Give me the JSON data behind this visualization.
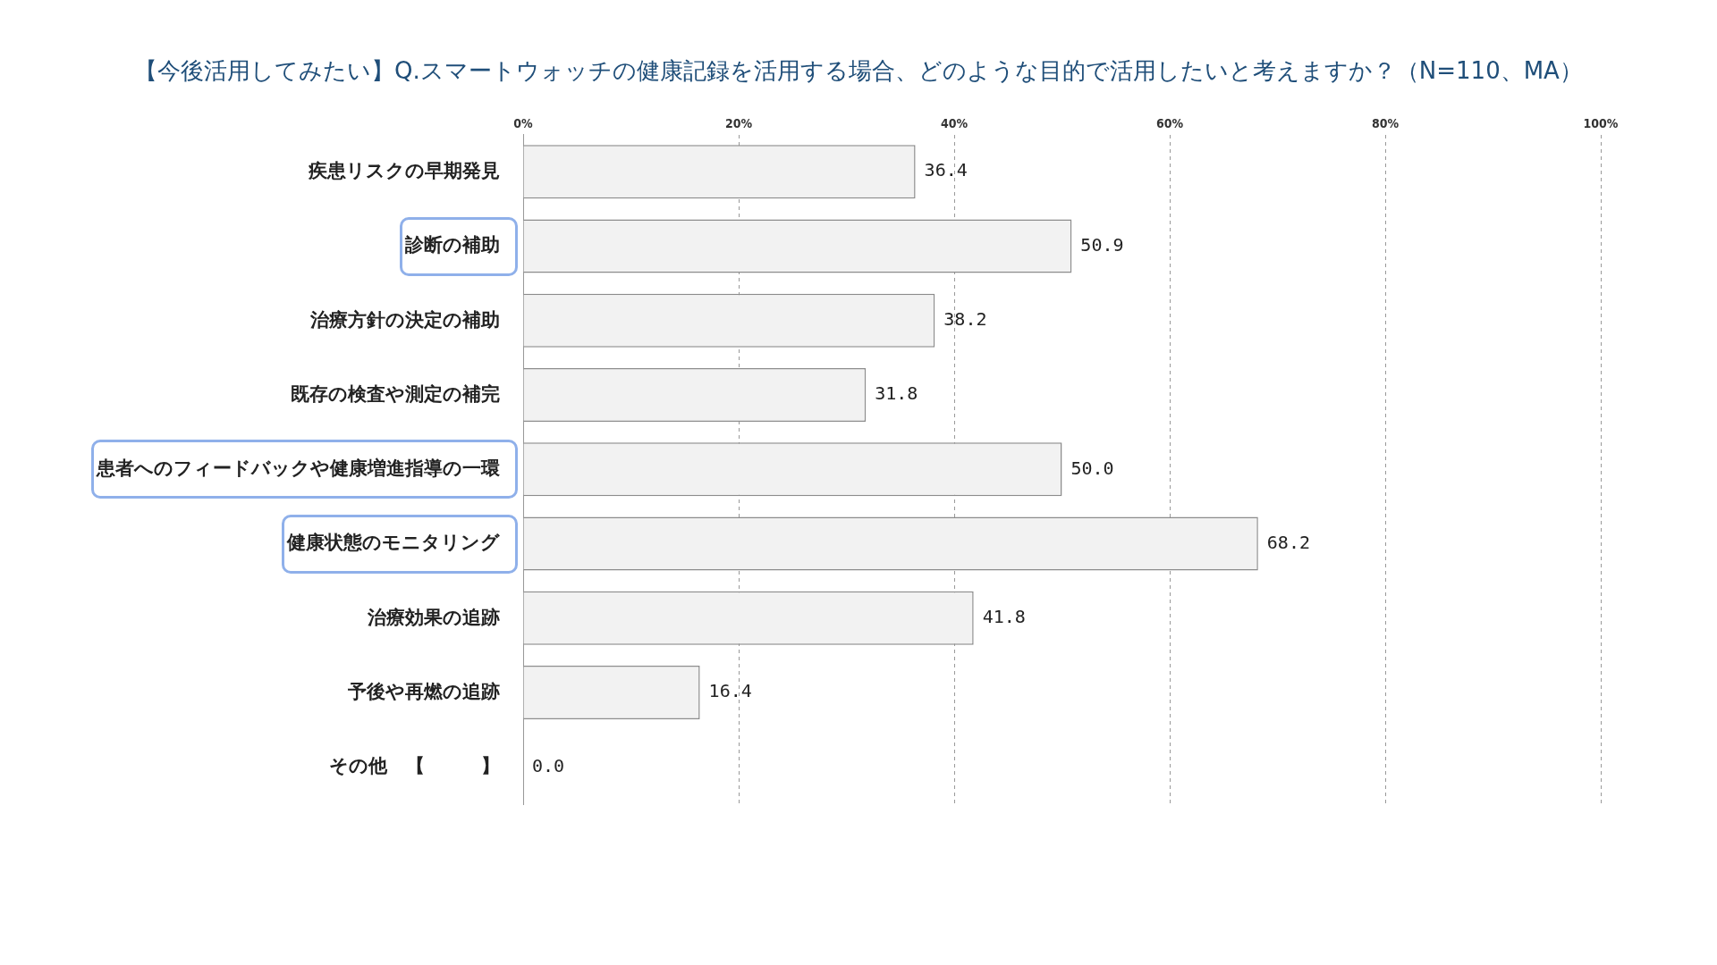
{
  "chart_data": {
    "type": "bar",
    "orientation": "horizontal",
    "title": "【今後活用してみたい】Q.スマートウォッチの健康記録を活用する場合、どのような目的で活用したいと考えますか？（N=110、MA）",
    "categories": [
      "疾患リスクの早期発見",
      "診断の補助",
      "治療方針の決定の補助",
      "既存の検査や測定の補完",
      "患者へのフィードバックや健康増進指導の一環",
      "健康状態のモニタリング",
      "治療効果の追跡",
      "予後や再燃の追跡",
      "その他　【　　　】"
    ],
    "values": [
      36.4,
      50.9,
      38.2,
      31.8,
      50.0,
      68.2,
      41.8,
      16.4,
      0.0
    ],
    "value_labels": [
      "36.4",
      "50.9",
      "38.2",
      "31.8",
      "50.0",
      "68.2",
      "41.8",
      "16.4",
      "0.0"
    ],
    "color": "#f2f2f2",
    "xlim": [
      0,
      100
    ],
    "xticks": [
      {
        "value": 0,
        "label": "0%"
      },
      {
        "value": 20,
        "label": "20%"
      },
      {
        "value": 40,
        "label": "40%"
      },
      {
        "value": 60,
        "label": "60%"
      },
      {
        "value": 80,
        "label": "80%"
      },
      {
        "value": 100,
        "label": "100%"
      }
    ],
    "grid": "x",
    "legend": false
  }
}
